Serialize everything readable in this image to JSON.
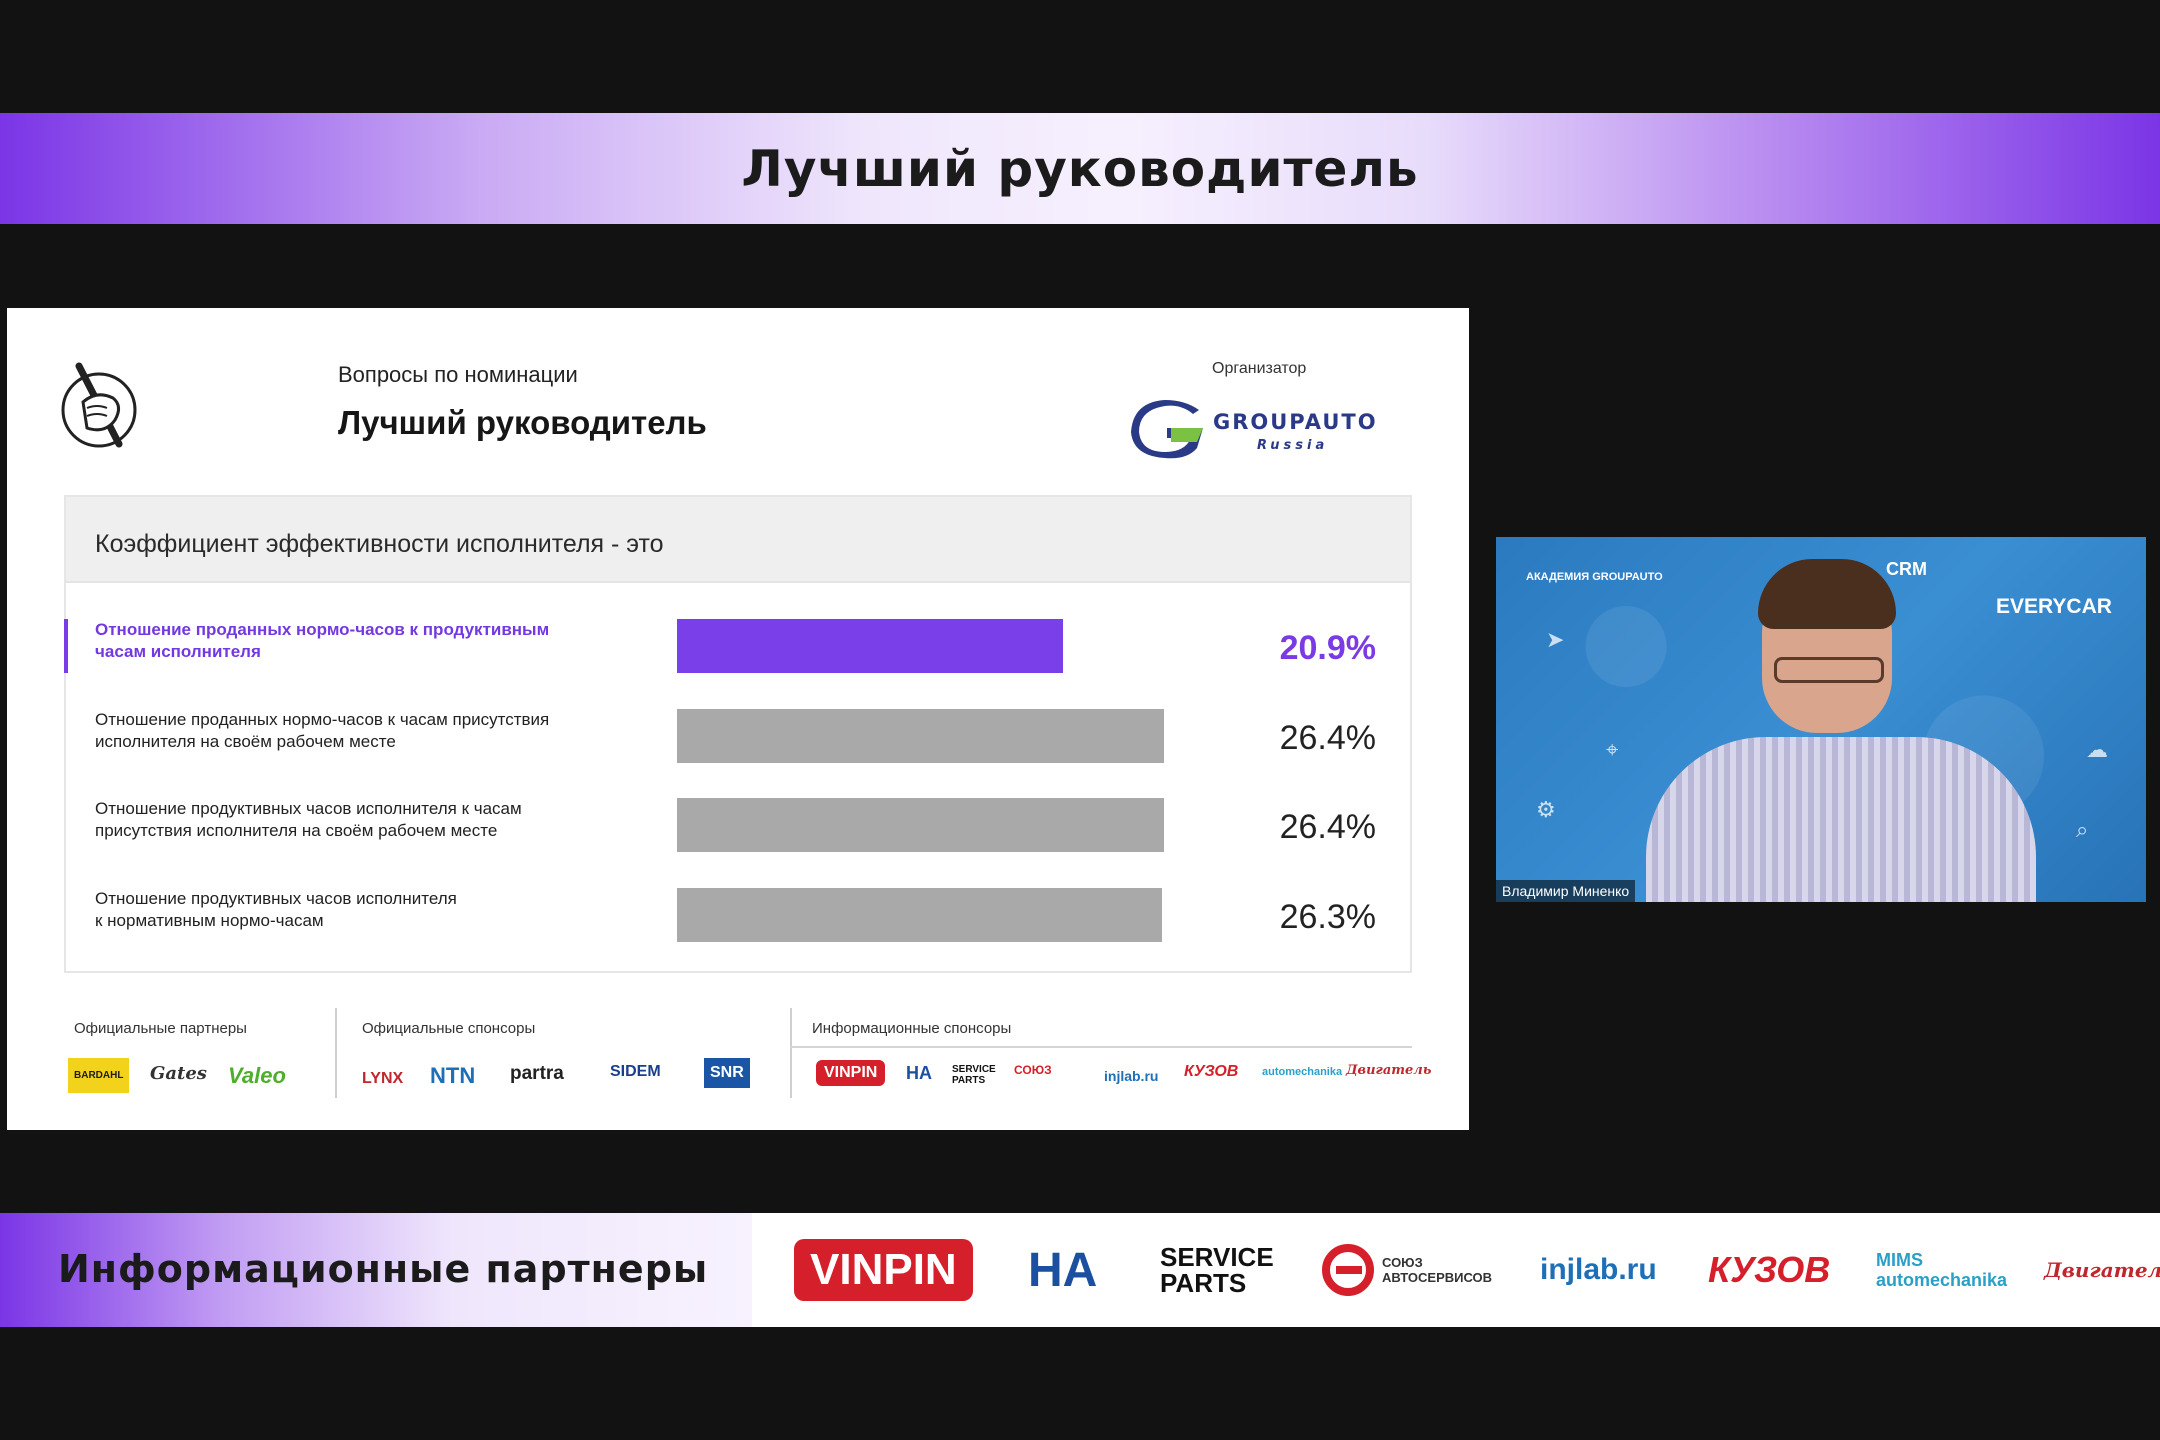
{
  "top_banner": {
    "title": "Лучший руководитель"
  },
  "slide": {
    "subtitle": "Вопросы по номинации",
    "title": "Лучший руководитель",
    "organizer_label": "Организатор",
    "organizer_logo": {
      "name": "GROUPAUTO",
      "sub": "Russia"
    },
    "question": "Коэффициент эффективности исполнителя - это",
    "options": [
      {
        "line1": "Отношение проданных нормо-часов к продуктивным",
        "line2": "часам исполнителя",
        "percent_label": "20.9%",
        "value": 20.9,
        "selected": true
      },
      {
        "line1": "Отношение проданных нормо-часов к часам присутствия",
        "line2": "исполнителя на своём рабочем месте",
        "percent_label": "26.4%",
        "value": 26.4,
        "selected": false
      },
      {
        "line1": "Отношение продуктивных часов исполнителя к часам",
        "line2": "присутствия исполнителя на своём рабочем месте",
        "percent_label": "26.4%",
        "value": 26.4,
        "selected": false
      },
      {
        "line1": "Отношение продуктивных часов исполнителя",
        "line2": "к нормативным нормо-часам",
        "percent_label": "26.3%",
        "value": 26.3,
        "selected": false
      }
    ],
    "sponsors": {
      "partners_label": "Официальные партнеры",
      "sponsors_label": "Официальные спонсоры",
      "info_label": "Информационные спонсоры",
      "partners": [
        "BARDAHL",
        "Gates",
        "Valeo"
      ],
      "official": [
        "LYNX",
        "NTN",
        "partra",
        "SIDEM",
        "SNR"
      ],
      "info": [
        "VINPIN",
        "HA",
        "SERVICE PARTS",
        "СОЮЗ",
        "injlab.ru",
        "КУЗОВ",
        "automechanika",
        "Двигатель"
      ]
    }
  },
  "video": {
    "speaker_name": "Владимир Миненко",
    "crm_label": "CRM",
    "everycar_label": "EVERYCAR",
    "academy_label": "АКАДЕМИЯ GROUPAUTO"
  },
  "bottom_banner": {
    "title": "Информационные партнеры",
    "logos": [
      "VINPIN",
      "HA",
      "SERVICE PARTS",
      "СОЮЗ АВТОСЕРВИСОВ",
      "injlab.ru",
      "КУЗОВ",
      "MIMS automechanika",
      "Двигатель"
    ]
  },
  "colors": {
    "accent": "#7b3be6",
    "bar_gray": "#a9a9a9",
    "background": "#121212"
  }
}
